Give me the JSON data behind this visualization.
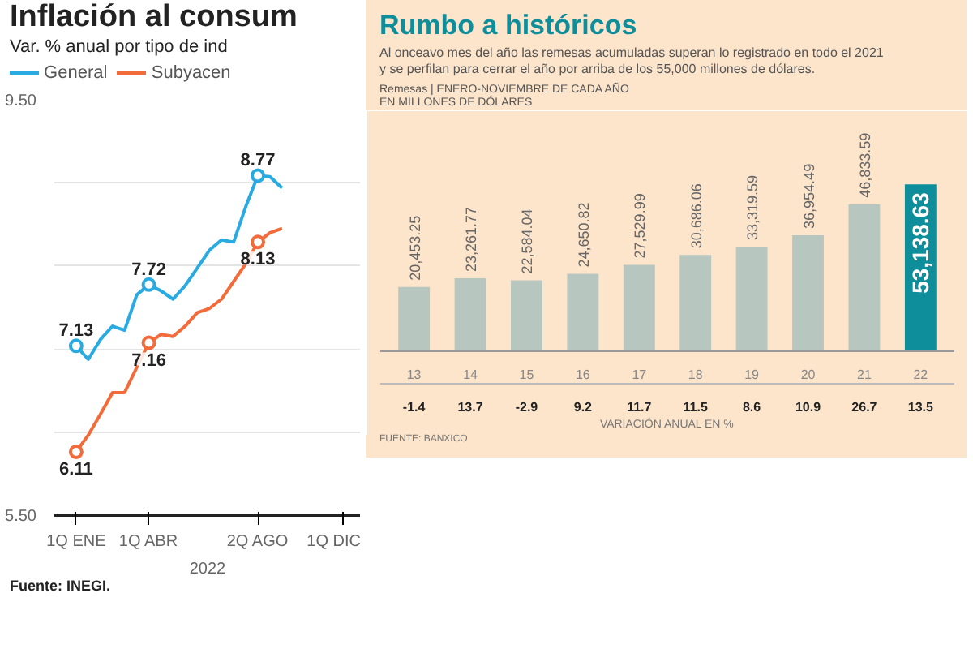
{
  "chart_data": [
    {
      "type": "line",
      "title": "Inflación al consum",
      "subtitle": "Var. % anual por tipo de ind",
      "categories": [
        "1Q ENE",
        null,
        null,
        null,
        null,
        null,
        "1Q ABR",
        null,
        null,
        null,
        null,
        null,
        null,
        null,
        null,
        "2Q AGO",
        null,
        null,
        null,
        null,
        null,
        null,
        "1Q DIC",
        null
      ],
      "series": [
        {
          "name": "General",
          "color": "#29abe2",
          "values": [
            7.13,
            7.0,
            7.19,
            7.32,
            7.28,
            7.62,
            7.72,
            7.66,
            7.58,
            7.71,
            7.88,
            8.05,
            8.15,
            8.13,
            8.47,
            8.77,
            8.76,
            8.65,
            null,
            null,
            null,
            null,
            null,
            null
          ],
          "value_labels": [
            "7.13",
            null,
            null,
            null,
            null,
            null,
            "7.72",
            null,
            null,
            null,
            null,
            null,
            null,
            null,
            null,
            "8.77",
            null,
            null,
            null,
            null,
            null,
            null,
            null,
            null
          ]
        },
        {
          "name": "Subyacen",
          "color": "#f26b3a",
          "values": [
            6.11,
            6.27,
            6.47,
            6.68,
            6.68,
            6.92,
            7.16,
            7.24,
            7.22,
            7.32,
            7.45,
            7.49,
            7.58,
            7.75,
            7.92,
            8.13,
            8.22,
            8.26,
            null,
            null,
            null,
            null,
            null,
            null
          ],
          "value_labels": [
            "6.11",
            null,
            null,
            null,
            null,
            null,
            "7.16",
            null,
            null,
            null,
            null,
            null,
            null,
            null,
            null,
            "8.13",
            null,
            null,
            null,
            null,
            null,
            null,
            null,
            null
          ]
        }
      ],
      "ylim": [
        5.5,
        9.5
      ],
      "yticks": [
        {
          "value": 5.5,
          "label": "5.50"
        },
        {
          "value": 6.3,
          "label": null
        },
        {
          "value": 7.1,
          "label": null
        },
        {
          "value": 7.9,
          "label": null
        },
        {
          "value": 8.7,
          "label": null
        },
        {
          "value": 9.5,
          "label": "9.50"
        }
      ],
      "grid": "y",
      "legend": "top",
      "xlabel": "2022",
      "annotations": [
        "Fuente: INEGI."
      ]
    },
    {
      "type": "bar",
      "title": "Rumbo a históricos",
      "subtitle": "Al onceavo mes del año las remesas acumuladas superan lo registrado en todo el 2021\ny se perfilan para cerrar el año por arriba de los 55,000 millones de dólares.",
      "categories": [
        "13",
        "14",
        "15",
        "16",
        "17",
        "18",
        "19",
        "20",
        "21",
        "22"
      ],
      "values": [
        20453.25,
        23261.77,
        22584.04,
        24650.82,
        27529.99,
        30686.06,
        33319.59,
        36954.49,
        46833.59,
        53138.63
      ],
      "colors": [
        "#b7c6bf",
        "#b7c6bf",
        "#b7c6bf",
        "#b7c6bf",
        "#b7c6bf",
        "#b7c6bf",
        "#b7c6bf",
        "#b7c6bf",
        "#b7c6bf",
        "#0e8e9b"
      ],
      "value_labels": [
        "20,453.25",
        "23,261.77",
        "22,584.04",
        "24,650.82",
        "27,529.99",
        "30,686.06",
        "33,319.59",
        "36,954.49",
        "46,833.59",
        "53,138.63"
      ],
      "annotations": [
        "Remesas | ENERO-NOVIEMBRE DE CADA AÑO",
        "EN MILLONES DE DÓLARES",
        "VARIACIÓN ANUAL EN %",
        "FUENTE: BANXICO",
        "-1.4",
        "13.7",
        "-2.9",
        "9.2",
        "11.7",
        "11.5",
        "8.6",
        "10.9",
        "26.7",
        "13.5"
      ]
    }
  ]
}
